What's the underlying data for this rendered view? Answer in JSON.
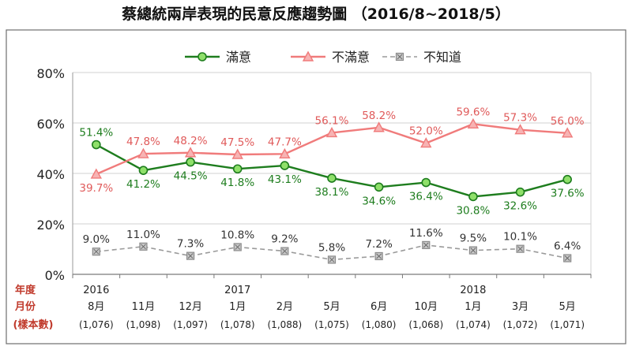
{
  "chart_data": {
    "type": "line",
    "title": "蔡總統兩岸表現的民意反應趨勢圖 （2016/8~2018/5）",
    "y_ticks": [
      "0%",
      "20%",
      "40%",
      "60%",
      "80%"
    ],
    "ylim": [
      0,
      80
    ],
    "grid": true,
    "legend_position": "top",
    "row_labels": {
      "year": "年度",
      "month": "月份",
      "sample": "(樣本數)"
    },
    "years": [
      {
        "label": "2016",
        "index": 0
      },
      {
        "label": "2017",
        "index": 3
      },
      {
        "label": "2018",
        "index": 8
      }
    ],
    "categories": [
      "8月",
      "11月",
      "12月",
      "1月",
      "2月",
      "5月",
      "6月",
      "10月",
      "1月",
      "3月",
      "5月"
    ],
    "sample_sizes": [
      "(1,076)",
      "(1,098)",
      "(1,097)",
      "(1,078)",
      "(1,088)",
      "(1,075)",
      "(1,080)",
      "(1,068)",
      "(1,074)",
      "(1,072)",
      "(1,071)"
    ],
    "series": [
      {
        "name": "滿意",
        "color": "#1e7d1e",
        "marker_fill": "#8fe06a",
        "values": [
          51.4,
          41.2,
          44.5,
          41.8,
          43.1,
          38.1,
          34.6,
          36.4,
          30.8,
          32.6,
          37.6
        ],
        "labels": [
          "51.4%",
          "41.2%",
          "44.5%",
          "41.8%",
          "43.1%",
          "38.1%",
          "34.6%",
          "36.4%",
          "30.8%",
          "32.6%",
          "37.6%"
        ],
        "label_side": [
          "above",
          "below",
          "below",
          "below",
          "below",
          "below",
          "below",
          "below",
          "below",
          "below",
          "below"
        ]
      },
      {
        "name": "不滿意",
        "color": "#f07b7b",
        "marker_fill": "#f7b3b3",
        "values": [
          39.7,
          47.8,
          48.2,
          47.5,
          47.7,
          56.1,
          58.2,
          52.0,
          59.6,
          57.3,
          56.0
        ],
        "labels": [
          "39.7%",
          "47.8%",
          "48.2%",
          "47.5%",
          "47.7%",
          "56.1%",
          "58.2%",
          "52.0%",
          "59.6%",
          "57.3%",
          "56.0%"
        ],
        "label_side": [
          "below",
          "above",
          "above",
          "above",
          "above",
          "above",
          "above",
          "above",
          "above",
          "above",
          "above"
        ]
      },
      {
        "name": "不知道",
        "color": "#9a9a9a",
        "marker_fill": "#c8c8c8",
        "values": [
          9.0,
          11.0,
          7.3,
          10.8,
          9.2,
          5.8,
          7.2,
          11.6,
          9.5,
          10.1,
          6.4
        ],
        "labels": [
          "9.0%",
          "11.0%",
          "7.3%",
          "10.8%",
          "9.2%",
          "5.8%",
          "7.2%",
          "11.6%",
          "9.5%",
          "10.1%",
          "6.4%"
        ],
        "label_side": [
          "above",
          "above",
          "above",
          "above",
          "above",
          "above",
          "above",
          "above",
          "above",
          "above",
          "above"
        ]
      }
    ]
  }
}
